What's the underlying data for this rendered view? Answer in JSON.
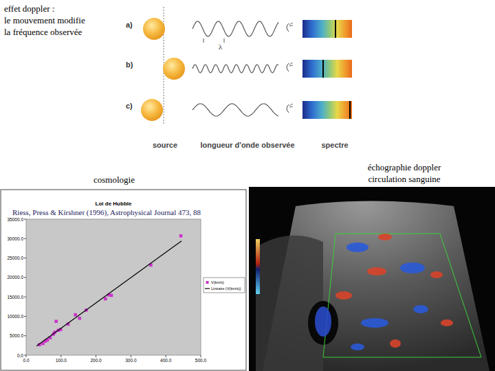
{
  "header": {
    "lines": [
      "effet doppler :",
      "le mouvement modifie",
      "la fréquence observée"
    ]
  },
  "diagram": {
    "rows": [
      "a)",
      "b)",
      "c)"
    ],
    "wavelength_symbol": "λ",
    "footer": [
      "source",
      "longueur d'onde observée",
      "spectre"
    ]
  },
  "captions": {
    "cosmology": "cosmologie",
    "ultrasound": [
      "échographie doppler",
      "circulation sanguine"
    ]
  },
  "chart_data": {
    "type": "scatter",
    "title": "Loi de Hubble",
    "annotation": "Riess, Press & Kirshner (1996), Astrophysical Journal 473, 88",
    "xlim": [
      0,
      500
    ],
    "ylim": [
      0,
      35000
    ],
    "xticks": [
      {
        "value": 0,
        "label": "0.0"
      },
      {
        "value": 100,
        "label": "100.0"
      },
      {
        "value": 200,
        "label": "200.0"
      },
      {
        "value": 300,
        "label": "300.0"
      },
      {
        "value": 400,
        "label": "400.0"
      },
      {
        "value": 500,
        "label": "500.0"
      }
    ],
    "yticks": [
      {
        "value": 0,
        "label": "0.0"
      },
      {
        "value": 5000,
        "label": "5000.0"
      },
      {
        "value": 10000,
        "label": "10000.0"
      },
      {
        "value": 15000,
        "label": "15000.0"
      },
      {
        "value": 20000,
        "label": "20000.0"
      },
      {
        "value": 25000,
        "label": "25000.0"
      },
      {
        "value": 30000,
        "label": "30000.0"
      },
      {
        "value": 35000,
        "label": "35000.0"
      }
    ],
    "grid": false,
    "legend": "right",
    "series": [
      {
        "name": "V(km/s)",
        "type": "scatter",
        "color": "#cc33cc",
        "marker": "square",
        "x": [
          38,
          48,
          55,
          61,
          69,
          78,
          82,
          86,
          92,
          99,
          120,
          141,
          153,
          172,
          227,
          237,
          244,
          357,
          443
        ],
        "values": [
          2700,
          3000,
          3600,
          3900,
          4500,
          5400,
          5900,
          8700,
          6400,
          6600,
          8000,
          10400,
          9500,
          11600,
          14500,
          15500,
          15400,
          23200,
          30700
        ]
      },
      {
        "name": "Linéaire (V(km/s))",
        "type": "line",
        "color": "#000000",
        "line_style": "solid",
        "x": [
          30,
          445
        ],
        "values": [
          2400,
          29400
        ]
      }
    ]
  }
}
